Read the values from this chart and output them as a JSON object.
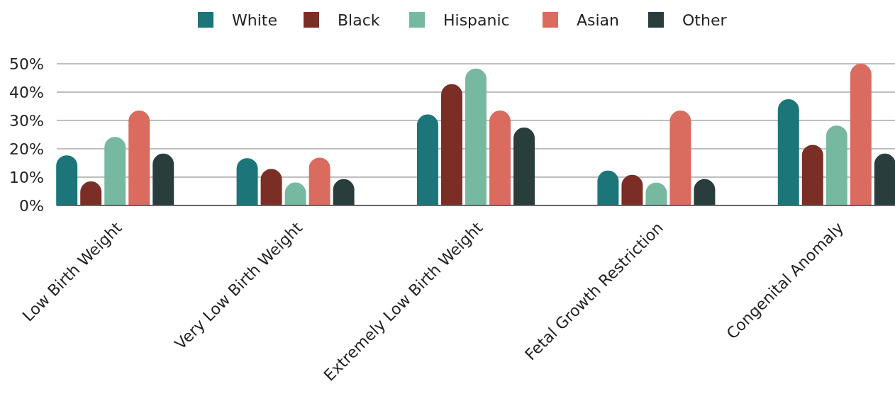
{
  "chart_data": {
    "type": "bar",
    "categories": [
      "Low Birth Weight",
      "Very Low Birth Weight",
      "Extremely Low Birth Weight",
      "Fetal Growth Restriction",
      "Congenital Anomaly"
    ],
    "series": [
      {
        "name": "White",
        "color": "#1b7579",
        "values": [
          17.7,
          16.7,
          32.1,
          12.3,
          37.5
        ]
      },
      {
        "name": "Black",
        "color": "#7a2e26",
        "values": [
          8.5,
          12.9,
          42.8,
          10.8,
          21.4
        ]
      },
      {
        "name": "Hispanic",
        "color": "#76b8a0",
        "values": [
          24.2,
          8.1,
          48.3,
          8.1,
          28.2
        ]
      },
      {
        "name": "Asian",
        "color": "#da6b5f",
        "values": [
          33.5,
          16.9,
          33.5,
          33.5,
          50
        ]
      },
      {
        "name": "Other",
        "color": "#293d3c",
        "values": [
          18.3,
          9.3,
          27.5,
          9.3,
          18.3
        ]
      }
    ],
    "ylim": [
      0,
      50
    ],
    "yticks": [
      {
        "value": 0,
        "label": "0%"
      },
      {
        "value": 10,
        "label": "10%"
      },
      {
        "value": 20,
        "label": "20%"
      },
      {
        "value": 30,
        "label": "30%"
      },
      {
        "value": 40,
        "label": "40%"
      },
      {
        "value": 50,
        "label": "50%"
      }
    ],
    "grid": "y",
    "legend": "top"
  }
}
